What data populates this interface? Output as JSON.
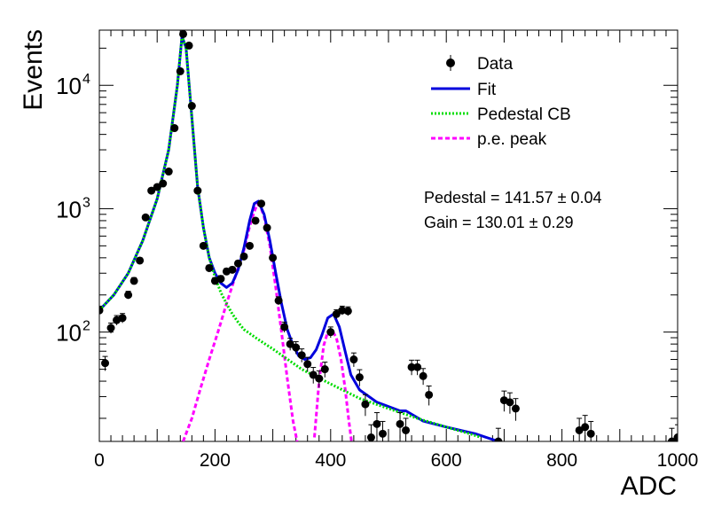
{
  "chart_data": {
    "type": "scatter",
    "xlabel": "ADC",
    "ylabel": "Events",
    "xlim": [
      0,
      1000
    ],
    "ylim": [
      13,
      28000
    ],
    "yscale": "log",
    "grid": false,
    "legend_position": "top-right",
    "x_ticks": [
      "0",
      "200",
      "400",
      "600",
      "800",
      "1000"
    ],
    "y_ticks": [
      {
        "value": 100,
        "base": "10",
        "exp": "2"
      },
      {
        "value": 1000,
        "base": "10",
        "exp": "3"
      },
      {
        "value": 10000,
        "base": "10",
        "exp": "4"
      }
    ],
    "annotations": [
      "Pedestal = 141.57 ± 0.04",
      "Gain = 130.01 ± 0.29"
    ],
    "series": [
      {
        "name": "Data",
        "style": "markers-errorbars",
        "color": "#000000",
        "points": [
          [
            0,
            150
          ],
          [
            10,
            56
          ],
          [
            20,
            108
          ],
          [
            30,
            125
          ],
          [
            40,
            130
          ],
          [
            50,
            200
          ],
          [
            60,
            260
          ],
          [
            70,
            380
          ],
          [
            80,
            850
          ],
          [
            90,
            1400
          ],
          [
            100,
            1500
          ],
          [
            110,
            1600
          ],
          [
            120,
            2000
          ],
          [
            130,
            4500
          ],
          [
            140,
            13000
          ],
          [
            145,
            26000
          ],
          [
            155,
            21000
          ],
          [
            160,
            6800
          ],
          [
            170,
            1400
          ],
          [
            180,
            500
          ],
          [
            190,
            330
          ],
          [
            200,
            260
          ],
          [
            210,
            270
          ],
          [
            220,
            310
          ],
          [
            230,
            320
          ],
          [
            240,
            360
          ],
          [
            250,
            410
          ],
          [
            260,
            500
          ],
          [
            270,
            800
          ],
          [
            280,
            1100
          ],
          [
            290,
            700
          ],
          [
            300,
            400
          ],
          [
            310,
            180
          ],
          [
            320,
            110
          ],
          [
            330,
            80
          ],
          [
            340,
            75
          ],
          [
            350,
            65
          ],
          [
            360,
            55
          ],
          [
            370,
            45
          ],
          [
            380,
            42
          ],
          [
            390,
            50
          ],
          [
            400,
            100
          ],
          [
            410,
            140
          ],
          [
            420,
            150
          ],
          [
            430,
            148
          ],
          [
            440,
            60
          ],
          [
            450,
            43
          ],
          [
            460,
            26
          ],
          [
            470,
            14
          ],
          [
            480,
            18
          ],
          [
            490,
            15
          ],
          [
            520,
            18
          ],
          [
            530,
            16
          ],
          [
            540,
            52
          ],
          [
            550,
            52
          ],
          [
            560,
            44
          ],
          [
            570,
            31
          ],
          [
            690,
            13
          ],
          [
            700,
            28
          ],
          [
            710,
            27
          ],
          [
            720,
            24
          ],
          [
            830,
            16
          ],
          [
            840,
            17
          ],
          [
            850,
            15
          ],
          [
            990,
            13
          ],
          [
            1000,
            14
          ]
        ]
      },
      {
        "name": "Fit",
        "style": "solid",
        "color": "#0000dd",
        "points": [
          [
            0,
            150
          ],
          [
            25,
            200
          ],
          [
            50,
            300
          ],
          [
            75,
            550
          ],
          [
            100,
            1200
          ],
          [
            120,
            3000
          ],
          [
            135,
            10000
          ],
          [
            143,
            25000
          ],
          [
            150,
            20000
          ],
          [
            160,
            5500
          ],
          [
            170,
            1500
          ],
          [
            180,
            700
          ],
          [
            190,
            400
          ],
          [
            200,
            300
          ],
          [
            210,
            250
          ],
          [
            220,
            230
          ],
          [
            230,
            250
          ],
          [
            240,
            320
          ],
          [
            250,
            480
          ],
          [
            260,
            800
          ],
          [
            268,
            1100
          ],
          [
            275,
            1150
          ],
          [
            285,
            900
          ],
          [
            295,
            550
          ],
          [
            305,
            300
          ],
          [
            315,
            170
          ],
          [
            325,
            105
          ],
          [
            335,
            78
          ],
          [
            345,
            64
          ],
          [
            355,
            60
          ],
          [
            365,
            62
          ],
          [
            375,
            72
          ],
          [
            385,
            95
          ],
          [
            395,
            130
          ],
          [
            405,
            140
          ],
          [
            415,
            110
          ],
          [
            425,
            70
          ],
          [
            435,
            45
          ],
          [
            450,
            34
          ],
          [
            480,
            27
          ],
          [
            520,
            23
          ],
          [
            530,
            23
          ],
          [
            560,
            19
          ],
          [
            600,
            17
          ],
          [
            650,
            15
          ],
          [
            690,
            13
          ]
        ]
      },
      {
        "name": "Pedestal CB",
        "style": "dotted",
        "color": "#00dd00",
        "points": [
          [
            0,
            150
          ],
          [
            25,
            200
          ],
          [
            50,
            300
          ],
          [
            75,
            550
          ],
          [
            100,
            1200
          ],
          [
            120,
            3000
          ],
          [
            135,
            10000
          ],
          [
            143,
            25000
          ],
          [
            150,
            20000
          ],
          [
            160,
            5500
          ],
          [
            170,
            1500
          ],
          [
            180,
            700
          ],
          [
            190,
            400
          ],
          [
            200,
            280
          ],
          [
            210,
            210
          ],
          [
            220,
            170
          ],
          [
            230,
            140
          ],
          [
            240,
            120
          ],
          [
            250,
            105
          ],
          [
            275,
            87
          ],
          [
            300,
            73
          ],
          [
            350,
            50
          ],
          [
            400,
            38
          ],
          [
            450,
            29
          ],
          [
            500,
            24
          ],
          [
            550,
            20
          ],
          [
            600,
            17
          ],
          [
            640,
            15
          ],
          [
            660,
            14
          ]
        ]
      },
      {
        "name": "p.e. peak",
        "style": "dashed",
        "color": "#ff00ff",
        "segments": [
          [
            [
              145,
              13
            ],
            [
              160,
              20
            ],
            [
              175,
              35
            ],
            [
              190,
              60
            ],
            [
              205,
              100
            ],
            [
              220,
              170
            ],
            [
              235,
              280
            ],
            [
              250,
              460
            ],
            [
              260,
              720
            ],
            [
              268,
              950
            ],
            [
              273,
              1080
            ],
            [
              278,
              1060
            ],
            [
              285,
              860
            ],
            [
              295,
              500
            ],
            [
              305,
              230
            ],
            [
              315,
              100
            ],
            [
              325,
              42
            ],
            [
              335,
              19
            ],
            [
              342,
              13
            ]
          ],
          [
            [
              372,
              14
            ],
            [
              380,
              40
            ],
            [
              388,
              78
            ],
            [
              395,
              100
            ],
            [
              402,
              104
            ],
            [
              410,
              90
            ],
            [
              418,
              60
            ],
            [
              425,
              35
            ],
            [
              431,
              20
            ],
            [
              436,
              13
            ]
          ]
        ]
      }
    ]
  }
}
